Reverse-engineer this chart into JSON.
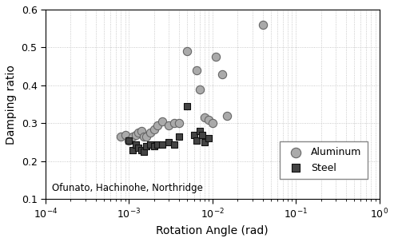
{
  "aluminum_x": [
    0.0008,
    0.0009,
    0.001,
    0.0011,
    0.0012,
    0.0013,
    0.0014,
    0.0015,
    0.0016,
    0.0018,
    0.002,
    0.0022,
    0.0025,
    0.003,
    0.0035,
    0.004,
    0.005,
    0.0065,
    0.007,
    0.008,
    0.009,
    0.01,
    0.011,
    0.013,
    0.015,
    0.04
  ],
  "aluminum_y": [
    0.265,
    0.27,
    0.255,
    0.265,
    0.27,
    0.275,
    0.28,
    0.265,
    0.265,
    0.275,
    0.285,
    0.295,
    0.305,
    0.295,
    0.3,
    0.3,
    0.49,
    0.44,
    0.39,
    0.315,
    0.31,
    0.3,
    0.475,
    0.43,
    0.32,
    0.56
  ],
  "steel_x": [
    0.001,
    0.0011,
    0.0012,
    0.0013,
    0.0014,
    0.0015,
    0.0016,
    0.0018,
    0.002,
    0.0022,
    0.0025,
    0.003,
    0.0035,
    0.004,
    0.005,
    0.006,
    0.0065,
    0.007,
    0.0075,
    0.008,
    0.009
  ],
  "steel_y": [
    0.255,
    0.23,
    0.245,
    0.235,
    0.23,
    0.225,
    0.24,
    0.245,
    0.24,
    0.245,
    0.245,
    0.25,
    0.245,
    0.265,
    0.345,
    0.27,
    0.255,
    0.28,
    0.27,
    0.25,
    0.26
  ],
  "aluminum_color": "#aaaaaa",
  "aluminum_edge": "#666666",
  "steel_color": "#444444",
  "steel_edge": "#111111",
  "xlabel": "Rotation Angle (rad)",
  "ylabel": "Damping ratio",
  "annotation": "Ofunato, Hachinohe, Northridge",
  "legend_labels": [
    "Aluminum",
    "Steel"
  ],
  "xlim": [
    0.0001,
    1.0
  ],
  "ylim": [
    0.1,
    0.6
  ],
  "yticks": [
    0.1,
    0.2,
    0.3,
    0.4,
    0.5,
    0.6
  ],
  "marker_size_al": 55,
  "marker_size_st": 40,
  "bg_color": "#f0f0f0"
}
